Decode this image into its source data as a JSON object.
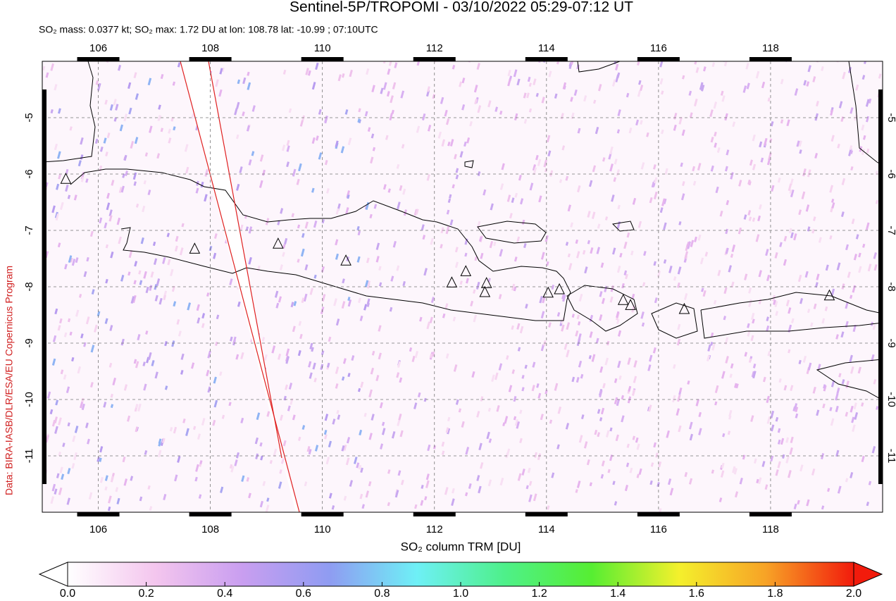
{
  "header": {
    "title": "Sentinel-5P/TROPOMI - 03/10/2022 05:29-07:12 UT",
    "subtitle": "SO₂ mass: 0.0377 kt; SO₂ max: 1.72 DU at lon: 108.78 lat: -10.99 ; 07:10UTC"
  },
  "credit": "Data: BIRA-IASB/DLR/ESA/EU Copernicus Program",
  "map": {
    "xlim": [
      105,
      120
    ],
    "ylim": [
      -12,
      -4
    ],
    "xticks": [
      106,
      108,
      110,
      112,
      114,
      116,
      118
    ],
    "yticks": [
      -5,
      -6,
      -7,
      -8,
      -9,
      -10,
      -11
    ],
    "volcanoes": {
      "lon": [
        105.42,
        107.72,
        109.21,
        110.42,
        112.31,
        112.56,
        112.93,
        112.9,
        114.03,
        114.23,
        115.37,
        115.5,
        116.46,
        119.05
      ],
      "lat": [
        -6.09,
        -7.33,
        -7.24,
        -7.54,
        -7.93,
        -7.73,
        -7.94,
        -8.1,
        -8.11,
        -8.05,
        -8.24,
        -8.33,
        -8.4,
        -8.16
      ]
    }
  },
  "colorbar": {
    "label": "SO₂ column TRM [DU]",
    "lim": [
      0,
      2
    ],
    "ticks": [
      {
        "value": 0,
        "label": "0.0"
      },
      0.2,
      0.4,
      0.6,
      0.8,
      {
        "value": 1,
        "label": "1.0"
      },
      1.2,
      1.4,
      1.6,
      1.8,
      {
        "value": 2,
        "label": "2.0"
      }
    ],
    "colors": [
      "#ffffff",
      "#f4c6ee",
      "#c99ef0",
      "#8f9cf2",
      "#6ef0f6",
      "#4ef08a",
      "#56ee32",
      "#f4f02c",
      "#f7a226",
      "#f21b0c"
    ]
  }
}
